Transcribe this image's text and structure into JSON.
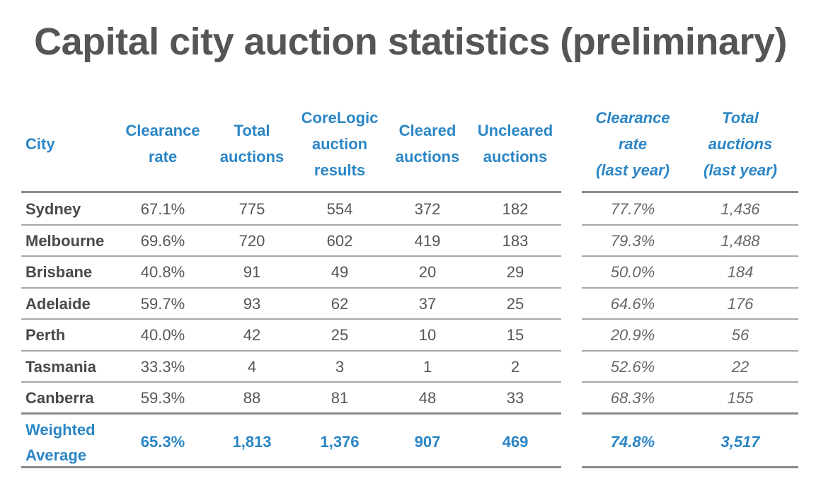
{
  "title": "Capital city auction statistics (preliminary)",
  "chart_data": {
    "type": "table",
    "columns": [
      "City",
      "Clearance rate",
      "Total auctions",
      "CoreLogic auction results",
      "Cleared auctions",
      "Uncleared auctions",
      "Clearance rate (last year)",
      "Total auctions (last year)"
    ],
    "header_lines": {
      "city": [
        "City"
      ],
      "clearance": [
        "Clearance",
        "rate"
      ],
      "total": [
        "Total",
        "auctions"
      ],
      "corelogic": [
        "CoreLogic",
        "auction",
        "results"
      ],
      "cleared": [
        "Cleared",
        "auctions"
      ],
      "uncleared": [
        "Uncleared",
        "auctions"
      ],
      "clearance_ly": [
        "Clearance",
        "rate",
        "(last year)"
      ],
      "total_ly": [
        "Total",
        "auctions",
        "(last year)"
      ]
    },
    "rows": [
      [
        "Sydney",
        "67.1%",
        "775",
        "554",
        "372",
        "182",
        "77.7%",
        "1,436"
      ],
      [
        "Melbourne",
        "69.6%",
        "720",
        "602",
        "419",
        "183",
        "79.3%",
        "1,488"
      ],
      [
        "Brisbane",
        "40.8%",
        "91",
        "49",
        "20",
        "29",
        "50.0%",
        "184"
      ],
      [
        "Adelaide",
        "59.7%",
        "93",
        "62",
        "37",
        "25",
        "64.6%",
        "176"
      ],
      [
        "Perth",
        "40.0%",
        "42",
        "25",
        "10",
        "15",
        "20.9%",
        "56"
      ],
      [
        "Tasmania",
        "33.3%",
        "4",
        "3",
        "1",
        "2",
        "52.6%",
        "22"
      ],
      [
        "Canberra",
        "59.3%",
        "88",
        "81",
        "48",
        "33",
        "68.3%",
        "155"
      ]
    ],
    "total_row": {
      "label_lines": [
        "Weighted",
        "Average"
      ],
      "values": [
        "65.3%",
        "1,813",
        "1,376",
        "907",
        "469",
        "74.8%",
        "3,517"
      ]
    }
  },
  "colors": {
    "header_text": "#2b86c5",
    "body_text": "#555555",
    "title_text": "#555555",
    "rule": "#8a8a8a"
  }
}
